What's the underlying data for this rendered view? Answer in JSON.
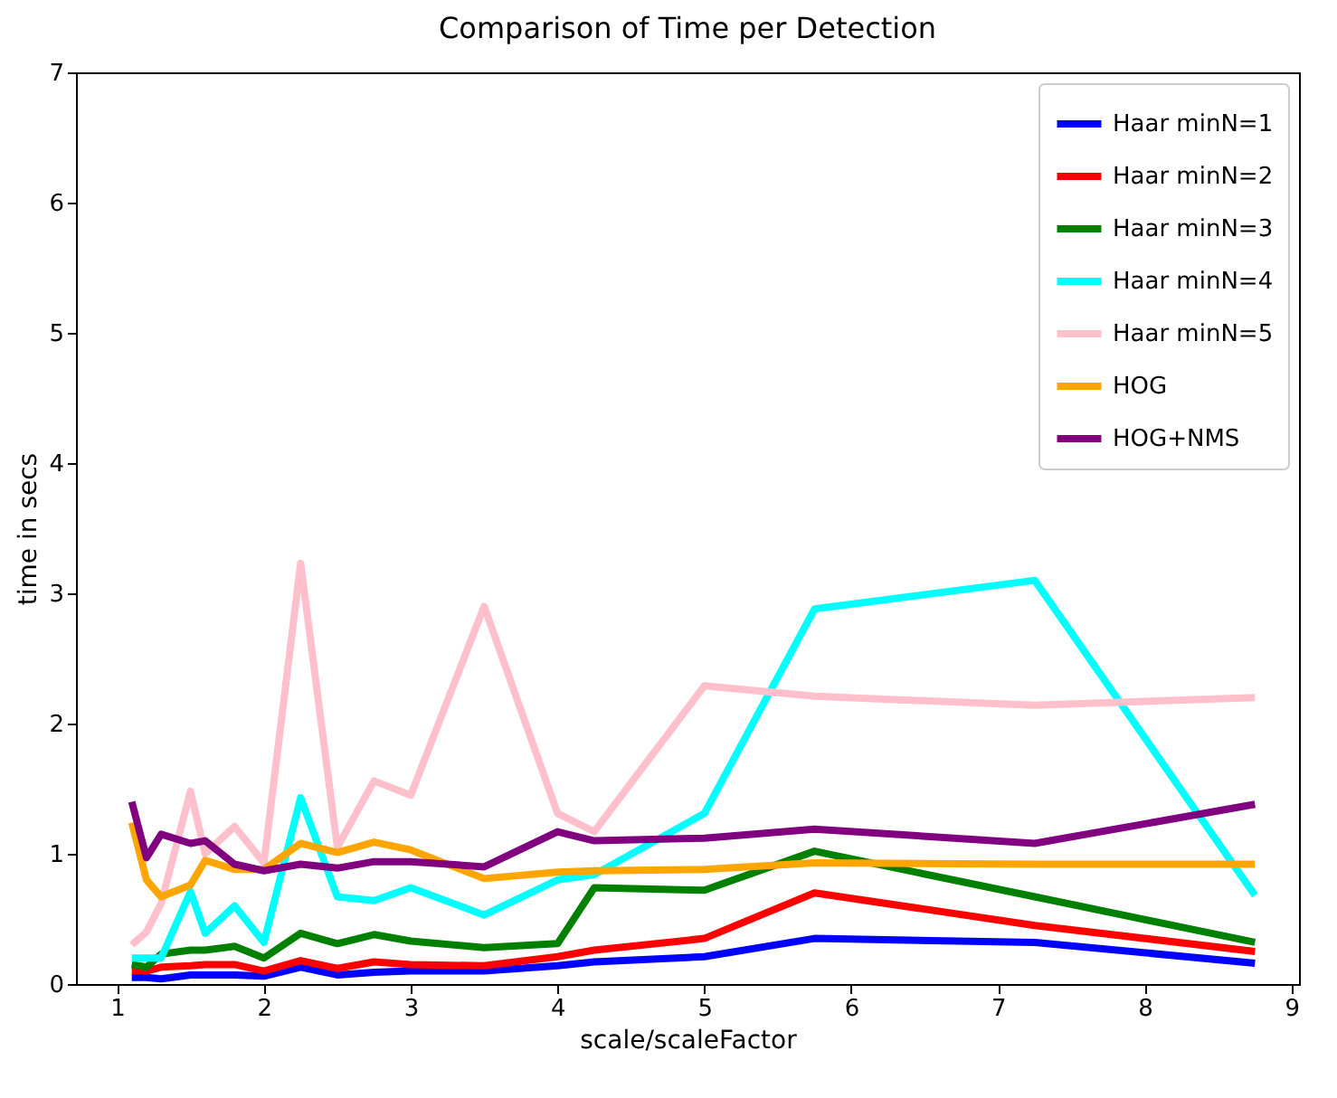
{
  "chart_data": {
    "type": "line",
    "title": "Comparison of Time per Detection",
    "xlabel": "scale/scaleFactor",
    "ylabel": "time in secs",
    "x": [
      1.1,
      1.2,
      1.3,
      1.5,
      1.6,
      1.8,
      2.0,
      2.25,
      2.5,
      2.75,
      3.0,
      3.5,
      4.0,
      4.25,
      5.0,
      5.75,
      7.25,
      8.75
    ],
    "series": [
      {
        "name": "Haar minN=1",
        "color": "#0000ff",
        "values": [
          0.05,
          0.05,
          0.04,
          0.07,
          0.07,
          0.07,
          0.06,
          0.13,
          0.07,
          0.09,
          0.1,
          0.1,
          0.14,
          0.17,
          0.21,
          0.35,
          0.32,
          0.16
        ]
      },
      {
        "name": "Haar minN=2",
        "color": "#ff0000",
        "values": [
          0.1,
          0.1,
          0.13,
          0.14,
          0.15,
          0.15,
          0.1,
          0.18,
          0.12,
          0.17,
          0.15,
          0.14,
          0.21,
          0.26,
          0.35,
          0.7,
          0.45,
          0.25
        ]
      },
      {
        "name": "Haar minN=3",
        "color": "#008000",
        "values": [
          0.15,
          0.13,
          0.23,
          0.26,
          0.26,
          0.29,
          0.2,
          0.39,
          0.31,
          0.38,
          0.33,
          0.28,
          0.31,
          0.74,
          0.72,
          1.02,
          0.67,
          0.32
        ]
      },
      {
        "name": "Haar minN=4",
        "color": "#00ffff",
        "values": [
          0.2,
          0.2,
          0.2,
          0.71,
          0.39,
          0.6,
          0.32,
          1.43,
          0.67,
          0.64,
          0.74,
          0.53,
          0.8,
          0.84,
          1.31,
          2.88,
          3.1,
          0.68
        ]
      },
      {
        "name": "Haar minN=5",
        "color": "#ffc0cb",
        "values": [
          0.3,
          0.4,
          0.62,
          1.48,
          1.0,
          1.21,
          0.93,
          3.23,
          1.05,
          1.56,
          1.45,
          2.9,
          1.31,
          1.17,
          2.29,
          2.21,
          2.14,
          2.2
        ]
      },
      {
        "name": "HOG",
        "color": "#ffa500",
        "values": [
          1.24,
          0.8,
          0.67,
          0.76,
          0.95,
          0.88,
          0.88,
          1.08,
          1.01,
          1.09,
          1.03,
          0.81,
          0.86,
          0.87,
          0.88,
          0.93,
          0.92,
          0.92
        ]
      },
      {
        "name": "HOG+NMS",
        "color": "#800080",
        "values": [
          1.4,
          0.97,
          1.15,
          1.08,
          1.1,
          0.92,
          0.87,
          0.92,
          0.89,
          0.94,
          0.94,
          0.9,
          1.17,
          1.1,
          1.12,
          1.19,
          1.08,
          1.38
        ]
      }
    ],
    "xlim": [
      0.72,
      9.05
    ],
    "xticks": [
      1,
      2,
      3,
      4,
      5,
      6,
      7,
      8,
      9
    ],
    "ylim": [
      0,
      7
    ],
    "yticks": [
      0,
      1,
      2,
      3,
      4,
      5,
      6,
      7
    ],
    "grid": false,
    "legend": "top right",
    "marker": "none",
    "line_style": "solid"
  }
}
